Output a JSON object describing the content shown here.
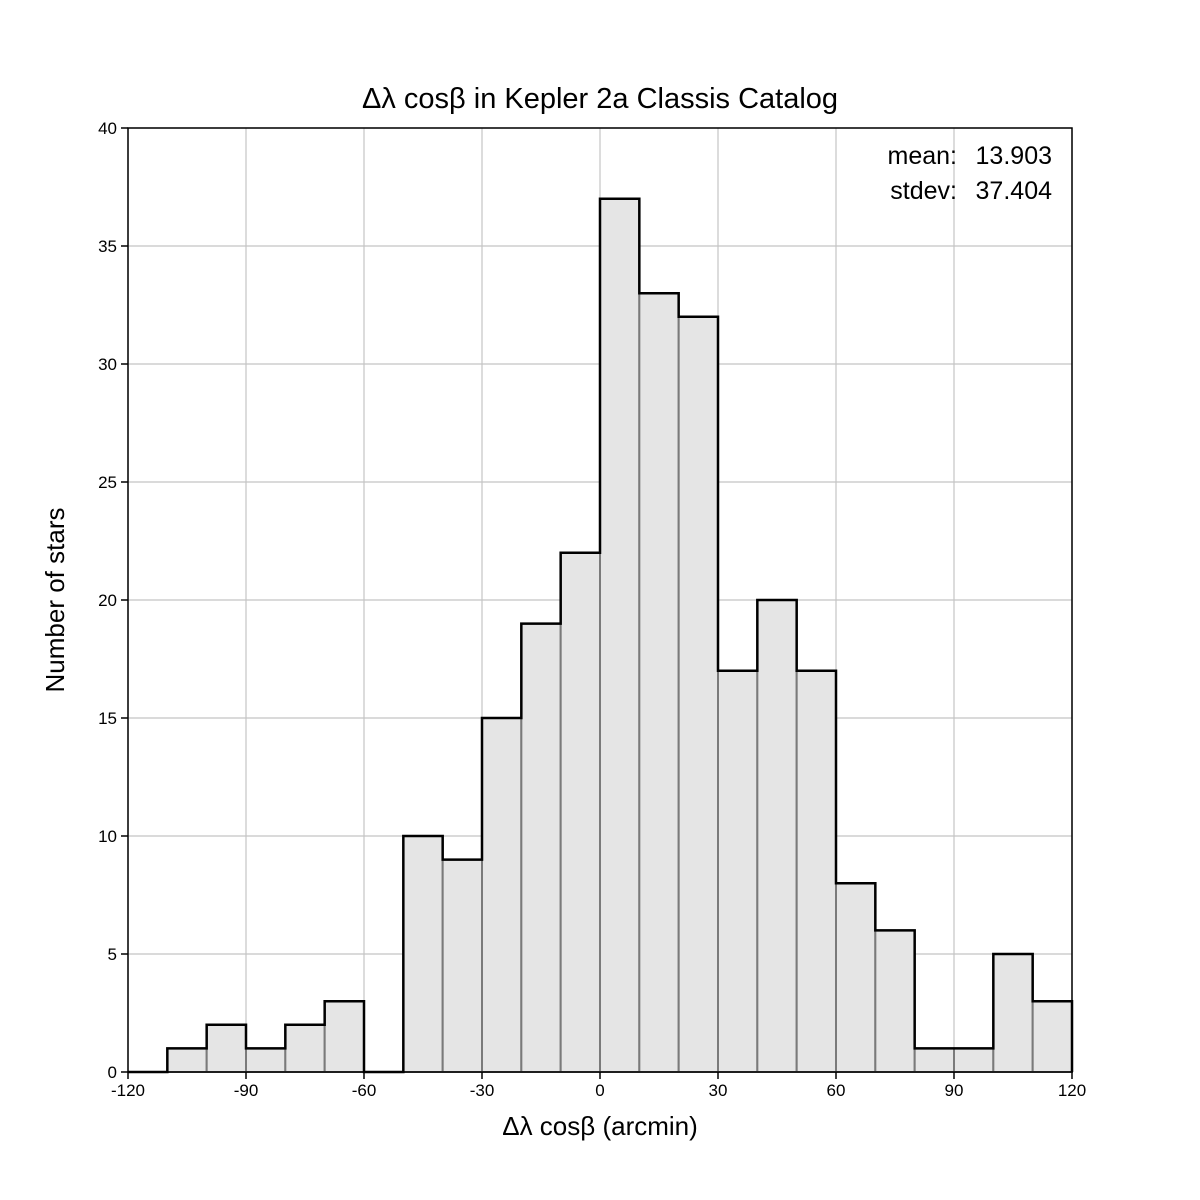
{
  "chart_data": {
    "type": "bar",
    "title": "Δλ cosβ in Kepler 2a Classis Catalog",
    "xlabel": "Δλ cosβ (arcmin)",
    "ylabel": "Number of stars",
    "xlim": [
      -120,
      120
    ],
    "ylim": [
      0,
      40
    ],
    "xticks": [
      -120,
      -90,
      -60,
      -30,
      0,
      30,
      60,
      90,
      120
    ],
    "yticks": [
      0,
      5,
      10,
      15,
      20,
      25,
      30,
      35,
      40
    ],
    "grid": true,
    "bin_width": 10,
    "bin_edges": [
      -120,
      -110,
      -100,
      -90,
      -80,
      -70,
      -60,
      -50,
      -40,
      -30,
      -20,
      -10,
      0,
      10,
      20,
      30,
      40,
      50,
      60,
      70,
      80,
      90,
      100,
      110,
      120
    ],
    "values": [
      0,
      1,
      2,
      1,
      2,
      3,
      0,
      10,
      9,
      15,
      19,
      22,
      37,
      33,
      32,
      17,
      20,
      17,
      8,
      6,
      1,
      1,
      5,
      3
    ],
    "colors": {
      "fill": "#e5e5e5",
      "edge": "#7a7a7a",
      "outline": "#000000",
      "grid": "#c4c4c4"
    },
    "annotations": {
      "mean_label": "mean:",
      "mean_value": "13.903",
      "stdev_label": "stdev:",
      "stdev_value": "37.404",
      "placement": "top-right"
    }
  }
}
